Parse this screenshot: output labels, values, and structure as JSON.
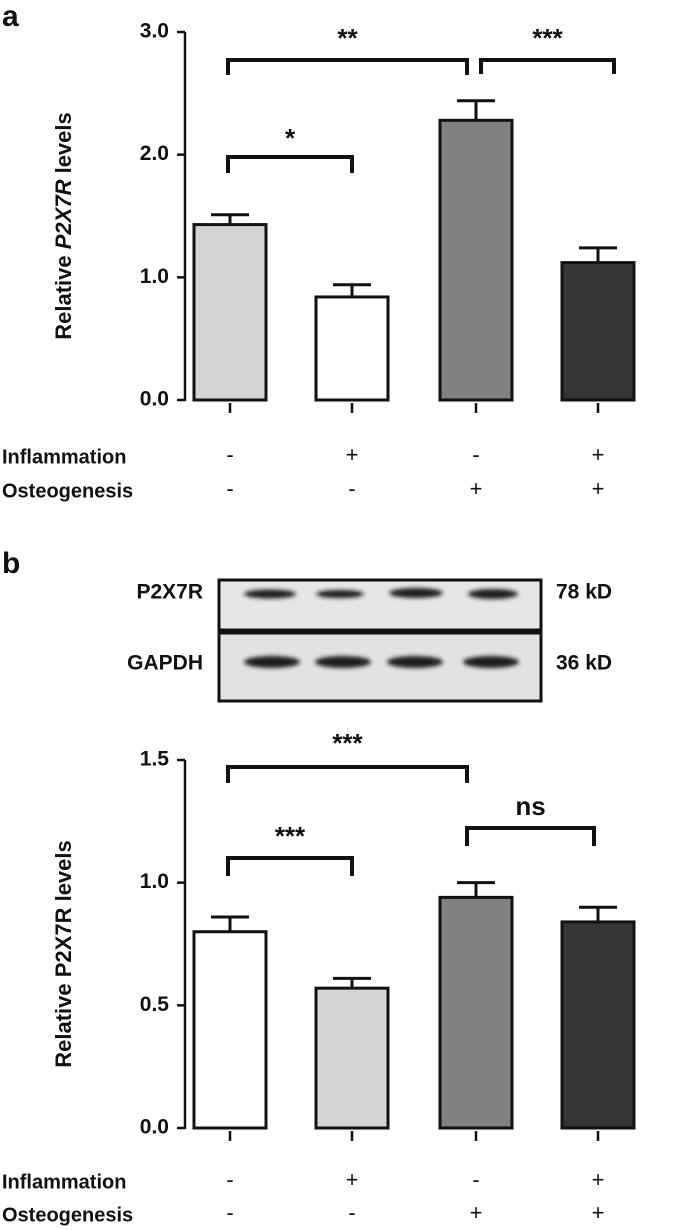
{
  "chart_data": [
    {
      "type": "bar",
      "panel": "a",
      "ylabel_parts": [
        "Relative ",
        "P2X7R",
        " levels"
      ],
      "values": [
        1.43,
        0.84,
        2.28,
        1.12
      ],
      "errors": [
        0.08,
        0.1,
        0.16,
        0.12
      ],
      "colors": [
        "#d4d4d4",
        "#ffffff",
        "#808080",
        "#353535"
      ],
      "ylim": [
        0,
        3
      ],
      "yticks": [
        {
          "value": 0,
          "label": "0.0"
        },
        {
          "value": 1,
          "label": "1.0"
        },
        {
          "value": 2,
          "label": "2.0"
        },
        {
          "value": 3,
          "label": "3.0"
        }
      ],
      "annotations": [
        "*",
        "**",
        "***"
      ],
      "conditions": [
        {
          "name": "Inflammation",
          "values": [
            "-",
            "+",
            "-",
            "+"
          ]
        },
        {
          "name": "Osteogenesis",
          "values": [
            "-",
            "-",
            "+",
            "+"
          ]
        }
      ]
    },
    {
      "type": "bar",
      "panel": "b",
      "ylabel_parts": [
        "Relative P2X7R levels"
      ],
      "values": [
        0.8,
        0.57,
        0.94,
        0.84
      ],
      "errors": [
        0.06,
        0.04,
        0.06,
        0.06
      ],
      "colors": [
        "#ffffff",
        "#d4d4d4",
        "#808080",
        "#353535"
      ],
      "ylim": [
        0,
        1.5
      ],
      "yticks": [
        {
          "value": 0,
          "label": "0.0"
        },
        {
          "value": 0.5,
          "label": "0.5"
        },
        {
          "value": 1,
          "label": "1.0"
        },
        {
          "value": 1.5,
          "label": "1.5"
        }
      ],
      "annotations": [
        "***",
        "***",
        "ns"
      ],
      "conditions": [
        {
          "name": "Inflammation",
          "values": [
            "-",
            "+",
            "-",
            "+"
          ]
        },
        {
          "name": "Osteogenesis",
          "values": [
            "-",
            "-",
            "+",
            "+"
          ]
        }
      ]
    }
  ],
  "blot": {
    "rows": [
      {
        "label": "P2X7R",
        "size": "78 kD"
      },
      {
        "label": "GAPDH",
        "size": "36 kD"
      }
    ]
  }
}
